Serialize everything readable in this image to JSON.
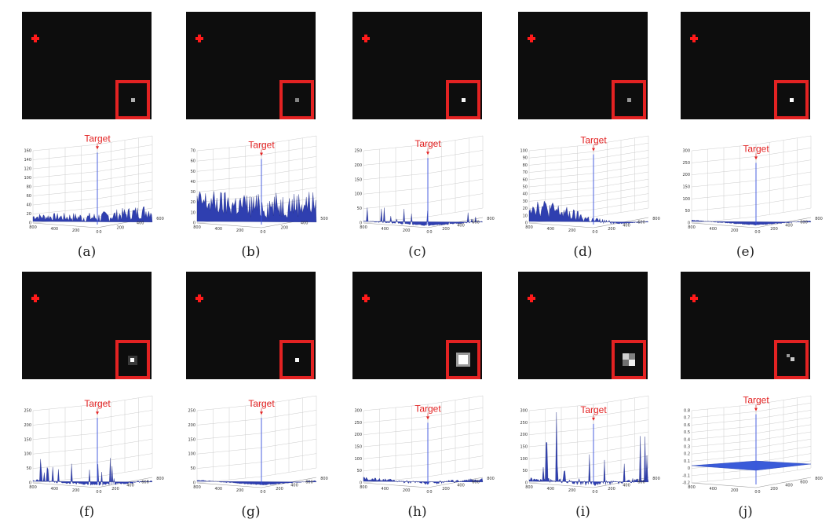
{
  "figure": {
    "marker_color": "#e32222",
    "target_label": "Target",
    "panels": [
      {
        "id": "a",
        "caption": "(a)",
        "spot_brightness": 0.55,
        "spot_size": "small",
        "chart_data": {
          "type": "surface3d",
          "title": "",
          "peak": 156,
          "ylim": [
            0,
            160
          ],
          "z_ticks": [
            "160",
            "140",
            "120",
            "100",
            "80",
            "60",
            "40",
            "20",
            "0"
          ],
          "x_ticks": [
            "800",
            "400",
            "200",
            "0"
          ],
          "y_ticks": [
            "0",
            "200",
            "400",
            "600"
          ],
          "clutter": {
            "level": 0.22,
            "profile": "rising-right"
          }
        }
      },
      {
        "id": "b",
        "caption": "(b)",
        "spot_brightness": 0.3,
        "spot_size": "small",
        "chart_data": {
          "type": "surface3d",
          "title": "",
          "peak": 62,
          "ylim": [
            0,
            70
          ],
          "z_ticks": [
            "70",
            "60",
            "50",
            "40",
            "30",
            "20",
            "10",
            "0"
          ],
          "x_ticks": [
            "800",
            "400",
            "200",
            "0"
          ],
          "y_ticks": [
            "0",
            "200",
            "400",
            "500"
          ],
          "clutter": {
            "level": 0.45,
            "profile": "dense"
          }
        }
      },
      {
        "id": "c",
        "caption": "(c)",
        "spot_brightness": 0.95,
        "spot_size": "small",
        "chart_data": {
          "type": "surface3d",
          "title": "",
          "peak": 225,
          "ylim": [
            0,
            250
          ],
          "z_ticks": [
            "250",
            "200",
            "150",
            "100",
            "50",
            "0"
          ],
          "x_ticks": [
            "800",
            "400",
            "200",
            "0"
          ],
          "y_ticks": [
            "0",
            "200",
            "400",
            "600",
            "800"
          ],
          "clutter": {
            "level": 0.1,
            "profile": "sparse-spikes"
          }
        }
      },
      {
        "id": "d",
        "caption": "(d)",
        "spot_brightness": 0.4,
        "spot_size": "small",
        "chart_data": {
          "type": "surface3d",
          "title": "",
          "peak": 95,
          "ylim": [
            0,
            100
          ],
          "z_ticks": [
            "100",
            "90",
            "80",
            "70",
            "60",
            "50",
            "40",
            "30",
            "20",
            "10",
            "0"
          ],
          "x_ticks": [
            "800",
            "400",
            "200",
            "0"
          ],
          "y_ticks": [
            "0",
            "200",
            "400",
            "600",
            "800"
          ],
          "clutter": {
            "level": 0.3,
            "profile": "left-heavy"
          }
        }
      },
      {
        "id": "e",
        "caption": "(e)",
        "spot_brightness": 1.0,
        "spot_size": "small",
        "chart_data": {
          "type": "surface3d",
          "title": "",
          "peak": 250,
          "ylim": [
            0,
            300
          ],
          "z_ticks": [
            "300",
            "250",
            "200",
            "150",
            "100",
            "50",
            "0"
          ],
          "x_ticks": [
            "800",
            "400",
            "200",
            "0"
          ],
          "y_ticks": [
            "0",
            "200",
            "400",
            "600",
            "800"
          ],
          "clutter": {
            "level": 0.02,
            "profile": "flat"
          }
        }
      },
      {
        "id": "f",
        "caption": "(f)",
        "spot_brightness": 1.0,
        "spot_size": "small-halo",
        "chart_data": {
          "type": "surface3d",
          "title": "",
          "peak": 225,
          "ylim": [
            0,
            250
          ],
          "z_ticks": [
            "250",
            "200",
            "150",
            "100",
            "50",
            "0"
          ],
          "x_ticks": [
            "800",
            "400",
            "200",
            "0"
          ],
          "y_ticks": [
            "0",
            "200",
            "400",
            "600",
            "800"
          ],
          "clutter": {
            "level": 0.2,
            "profile": "sparse-spikes"
          }
        }
      },
      {
        "id": "g",
        "caption": "(g)",
        "spot_brightness": 0.95,
        "spot_size": "small",
        "chart_data": {
          "type": "surface3d",
          "title": "",
          "peak": 225,
          "ylim": [
            0,
            250
          ],
          "z_ticks": [
            "250",
            "200",
            "150",
            "100",
            "50",
            "0"
          ],
          "x_ticks": [
            "800",
            "400",
            "200",
            "0"
          ],
          "y_ticks": [
            "0",
            "200",
            "400",
            "600",
            "800"
          ],
          "clutter": {
            "level": 0.02,
            "profile": "flat"
          }
        }
      },
      {
        "id": "h",
        "caption": "(h)",
        "spot_brightness": 1.0,
        "spot_size": "large",
        "chart_data": {
          "type": "surface3d",
          "title": "",
          "peak": 250,
          "ylim": [
            0,
            300
          ],
          "z_ticks": [
            "300",
            "250",
            "200",
            "150",
            "100",
            "50",
            "0"
          ],
          "x_ticks": [
            "800",
            "400",
            "200",
            "0"
          ],
          "y_ticks": [
            "0",
            "200",
            "400",
            "600",
            "800"
          ],
          "clutter": {
            "level": 0.05,
            "profile": "low-noise"
          }
        }
      },
      {
        "id": "i",
        "caption": "(i)",
        "spot_brightness": 0.9,
        "spot_size": "large-checker",
        "chart_data": {
          "type": "surface3d",
          "title": "",
          "peak": 245,
          "ylim": [
            0,
            300
          ],
          "z_ticks": [
            "300",
            "250",
            "200",
            "150",
            "100",
            "50",
            "0"
          ],
          "x_ticks": [
            "800",
            "400",
            "200",
            "0"
          ],
          "y_ticks": [
            "0",
            "200",
            "400",
            "600",
            "800"
          ],
          "clutter": {
            "level": 0.45,
            "profile": "sparse-spikes"
          }
        }
      },
      {
        "id": "j",
        "caption": "(j)",
        "spot_brightness": 0.7,
        "spot_size": "small-pair",
        "chart_data": {
          "type": "surface3d",
          "title": "",
          "peak": 0.75,
          "ylim": [
            -0.2,
            0.8
          ],
          "z_ticks": [
            "0.8",
            "0.7",
            "0.6",
            "0.5",
            "0.4",
            "0.3",
            "0.2",
            "0.1",
            "0",
            "-0.1",
            "-0.2"
          ],
          "x_ticks": [
            "800",
            "400",
            "200",
            "0"
          ],
          "y_ticks": [
            "0",
            "200",
            "400",
            "600",
            "800"
          ],
          "clutter": {
            "level": 0.0,
            "profile": "plane"
          }
        }
      }
    ]
  }
}
